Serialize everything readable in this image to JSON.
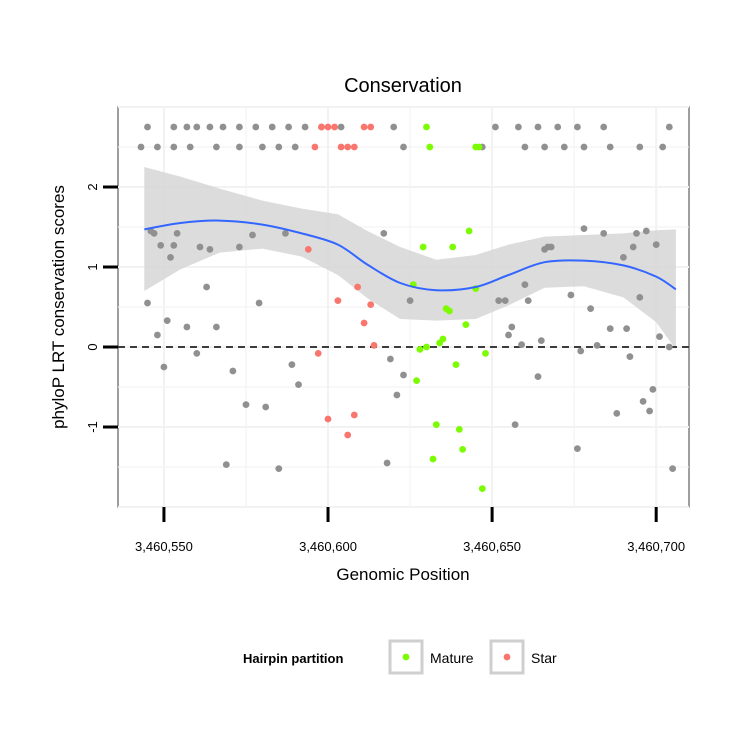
{
  "chart_data": {
    "type": "scatter",
    "title": "Conservation",
    "xlabel": "Genomic Position",
    "ylabel": "phyloP LRT conservation scores",
    "xlim": [
      3460536,
      3460710
    ],
    "ylim": [
      -2.0,
      3.0
    ],
    "x_ticks": [
      3460550,
      3460600,
      3460650,
      3460700
    ],
    "x_tick_labels": [
      "3,460,550",
      "3,460,600",
      "3,460,650",
      "3,460,700"
    ],
    "y_ticks": [
      -1,
      0,
      1,
      2
    ],
    "y_tick_labels": [
      "-1",
      "0",
      "1",
      "2"
    ],
    "reference_line": {
      "y": 0,
      "style": "dashed"
    },
    "grid": true,
    "legend": {
      "title": "Hairpin partition",
      "position": "bottom",
      "entries": [
        {
          "label": "Mature",
          "color": "#7cfc00"
        },
        {
          "label": "Star",
          "color": "#f8766d"
        }
      ]
    },
    "colors": {
      "other": "#909090",
      "mature": "#7cfc00",
      "star": "#f8766d",
      "smooth": "#3366ff",
      "ribbon": "#d3d3d3"
    },
    "series": [
      {
        "name": "Other",
        "points": [
          [
            3460545,
            0.55
          ],
          [
            3460546,
            1.45
          ],
          [
            3460547,
            1.42
          ],
          [
            3460548,
            0.15
          ],
          [
            3460549,
            1.27
          ],
          [
            3460550,
            -0.25
          ],
          [
            3460551,
            0.33
          ],
          [
            3460552,
            1.12
          ],
          [
            3460553,
            1.27
          ],
          [
            3460554,
            1.42
          ],
          [
            3460557,
            0.25
          ],
          [
            3460560,
            -0.08
          ],
          [
            3460561,
            1.25
          ],
          [
            3460563,
            0.75
          ],
          [
            3460564,
            1.22
          ],
          [
            3460566,
            0.25
          ],
          [
            3460569,
            -1.47
          ],
          [
            3460571,
            -0.3
          ],
          [
            3460573,
            1.25
          ],
          [
            3460575,
            -0.72
          ],
          [
            3460577,
            1.4
          ],
          [
            3460579,
            0.55
          ],
          [
            3460581,
            -0.75
          ],
          [
            3460585,
            -1.52
          ],
          [
            3460587,
            1.42
          ],
          [
            3460589,
            -0.22
          ],
          [
            3460591,
            -0.47
          ],
          [
            3460617,
            1.42
          ],
          [
            3460618,
            -1.45
          ],
          [
            3460619,
            -0.15
          ],
          [
            3460621,
            -0.6
          ],
          [
            3460623,
            -0.35
          ],
          [
            3460625,
            0.58
          ],
          [
            3460652,
            0.58
          ],
          [
            3460654,
            0.58
          ],
          [
            3460655,
            0.15
          ],
          [
            3460656,
            0.25
          ],
          [
            3460657,
            -0.97
          ],
          [
            3460659,
            0.03
          ],
          [
            3460660,
            0.78
          ],
          [
            3460661,
            0.58
          ],
          [
            3460664,
            -0.37
          ],
          [
            3460665,
            0.08
          ],
          [
            3460666,
            1.22
          ],
          [
            3460667,
            1.25
          ],
          [
            3460668,
            1.25
          ],
          [
            3460674,
            0.65
          ],
          [
            3460676,
            -1.27
          ],
          [
            3460677,
            -0.05
          ],
          [
            3460678,
            1.48
          ],
          [
            3460680,
            0.48
          ],
          [
            3460682,
            0.02
          ],
          [
            3460684,
            1.42
          ],
          [
            3460686,
            0.23
          ],
          [
            3460688,
            -0.83
          ],
          [
            3460690,
            1.12
          ],
          [
            3460691,
            0.23
          ],
          [
            3460692,
            -0.12
          ],
          [
            3460693,
            1.25
          ],
          [
            3460694,
            1.42
          ],
          [
            3460695,
            0.62
          ],
          [
            3460696,
            -0.68
          ],
          [
            3460697,
            1.45
          ],
          [
            3460698,
            -0.8
          ],
          [
            3460699,
            -0.53
          ],
          [
            3460700,
            1.28
          ],
          [
            3460701,
            0.13
          ],
          [
            3460704,
            0.0
          ],
          [
            3460705,
            -1.52
          ],
          [
            3460545,
            2.75
          ],
          [
            3460553,
            2.75
          ],
          [
            3460557,
            2.75
          ],
          [
            3460560,
            2.75
          ],
          [
            3460564,
            2.75
          ],
          [
            3460568,
            2.75
          ],
          [
            3460573,
            2.75
          ],
          [
            3460578,
            2.75
          ],
          [
            3460583,
            2.75
          ],
          [
            3460588,
            2.75
          ],
          [
            3460593,
            2.75
          ],
          [
            3460598,
            2.75
          ],
          [
            3460604,
            2.75
          ],
          [
            3460620,
            2.75
          ],
          [
            3460651,
            2.75
          ],
          [
            3460658,
            2.75
          ],
          [
            3460664,
            2.75
          ],
          [
            3460670,
            2.75
          ],
          [
            3460676,
            2.75
          ],
          [
            3460684,
            2.75
          ],
          [
            3460704,
            2.75
          ],
          [
            3460543,
            2.5
          ],
          [
            3460548,
            2.5
          ],
          [
            3460553,
            2.5
          ],
          [
            3460558,
            2.5
          ],
          [
            3460566,
            2.5
          ],
          [
            3460573,
            2.5
          ],
          [
            3460580,
            2.5
          ],
          [
            3460585,
            2.5
          ],
          [
            3460590,
            2.5
          ],
          [
            3460623,
            2.5
          ],
          [
            3460647,
            2.5
          ],
          [
            3460660,
            2.5
          ],
          [
            3460666,
            2.5
          ],
          [
            3460672,
            2.5
          ],
          [
            3460678,
            2.5
          ],
          [
            3460686,
            2.5
          ],
          [
            3460695,
            2.5
          ],
          [
            3460702,
            2.5
          ]
        ]
      },
      {
        "name": "Mature",
        "points": [
          [
            3460626,
            0.78
          ],
          [
            3460627,
            -0.42
          ],
          [
            3460628,
            -0.03
          ],
          [
            3460629,
            1.25
          ],
          [
            3460630,
            0.0
          ],
          [
            3460632,
            -1.4
          ],
          [
            3460633,
            -0.97
          ],
          [
            3460634,
            0.05
          ],
          [
            3460635,
            0.1
          ],
          [
            3460636,
            0.48
          ],
          [
            3460637,
            0.45
          ],
          [
            3460638,
            1.25
          ],
          [
            3460639,
            -0.22
          ],
          [
            3460640,
            -1.03
          ],
          [
            3460641,
            -1.28
          ],
          [
            3460642,
            0.28
          ],
          [
            3460643,
            1.45
          ],
          [
            3460645,
            0.73
          ],
          [
            3460647,
            -1.77
          ],
          [
            3460648,
            -0.08
          ],
          [
            3460630,
            2.75
          ],
          [
            3460631,
            2.5
          ],
          [
            3460645,
            2.5
          ],
          [
            3460646,
            2.5
          ]
        ]
      },
      {
        "name": "Star",
        "points": [
          [
            3460594,
            1.22
          ],
          [
            3460597,
            -0.08
          ],
          [
            3460600,
            -0.9
          ],
          [
            3460603,
            0.58
          ],
          [
            3460606,
            -1.1
          ],
          [
            3460608,
            -0.85
          ],
          [
            3460609,
            0.75
          ],
          [
            3460611,
            0.3
          ],
          [
            3460613,
            0.53
          ],
          [
            3460614,
            0.02
          ],
          [
            3460598,
            2.75
          ],
          [
            3460600,
            2.75
          ],
          [
            3460602,
            2.75
          ],
          [
            3460611,
            2.75
          ],
          [
            3460613,
            2.75
          ],
          [
            3460596,
            2.5
          ],
          [
            3460604,
            2.5
          ],
          [
            3460606,
            2.5
          ],
          [
            3460608,
            2.5
          ]
        ]
      }
    ],
    "smooth": {
      "x": [
        3460544,
        3460555,
        3460567,
        3460580,
        3460592,
        3460603,
        3460612,
        3460622,
        3460633,
        3460645,
        3460655,
        3460666,
        3460678,
        3460690,
        3460700,
        3460706
      ],
      "fit": [
        1.47,
        1.55,
        1.58,
        1.53,
        1.42,
        1.28,
        1.03,
        0.8,
        0.71,
        0.75,
        0.9,
        1.06,
        1.08,
        1.02,
        0.88,
        0.72
      ],
      "lower": [
        0.7,
        0.97,
        1.18,
        1.23,
        1.13,
        0.9,
        0.61,
        0.35,
        0.33,
        0.35,
        0.52,
        0.74,
        0.76,
        0.62,
        0.31,
        -0.03
      ],
      "upper": [
        2.25,
        2.13,
        1.98,
        1.83,
        1.73,
        1.66,
        1.45,
        1.25,
        1.09,
        1.15,
        1.28,
        1.38,
        1.4,
        1.42,
        1.46,
        1.47
      ]
    }
  }
}
